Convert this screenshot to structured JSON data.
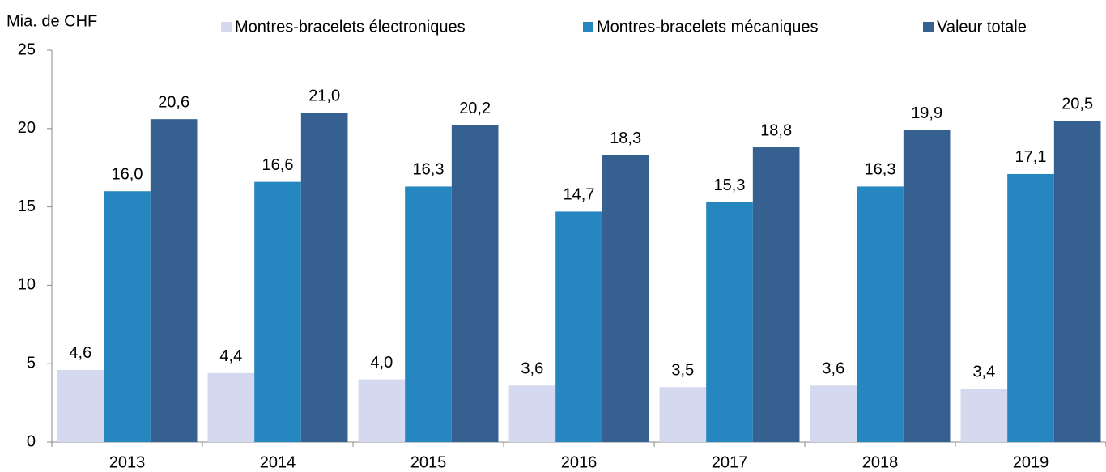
{
  "chart_data": {
    "type": "bar",
    "y_axis_label": "Mia. de CHF",
    "categories": [
      "2013",
      "2014",
      "2015",
      "2016",
      "2017",
      "2018",
      "2019"
    ],
    "series": [
      {
        "name": "Montres-bracelets électroniques",
        "color": "#d5d9f0",
        "values": [
          4.6,
          4.4,
          4.0,
          3.6,
          3.5,
          3.6,
          3.4
        ],
        "value_labels": [
          "4,6",
          "4,4",
          "4,0",
          "3,6",
          "3,5",
          "3,6",
          "3,4"
        ]
      },
      {
        "name": "Montres-bracelets mécaniques",
        "color": "#2586c0",
        "values": [
          16.0,
          16.6,
          16.3,
          14.7,
          15.3,
          16.3,
          17.1
        ],
        "value_labels": [
          "16,0",
          "16,6",
          "16,3",
          "14,7",
          "15,3",
          "16,3",
          "17,1"
        ]
      },
      {
        "name": "Valeur totale",
        "color": "#35608f",
        "values": [
          20.6,
          21.0,
          20.2,
          18.3,
          18.8,
          19.9,
          20.5
        ],
        "value_labels": [
          "20,6",
          "21,0",
          "20,2",
          "18,3",
          "18,8",
          "19,9",
          "20,5"
        ]
      }
    ],
    "ylim": [
      0,
      25
    ],
    "yticks": [
      0,
      5,
      10,
      15,
      20,
      25
    ],
    "grid": false,
    "legend": "top"
  }
}
